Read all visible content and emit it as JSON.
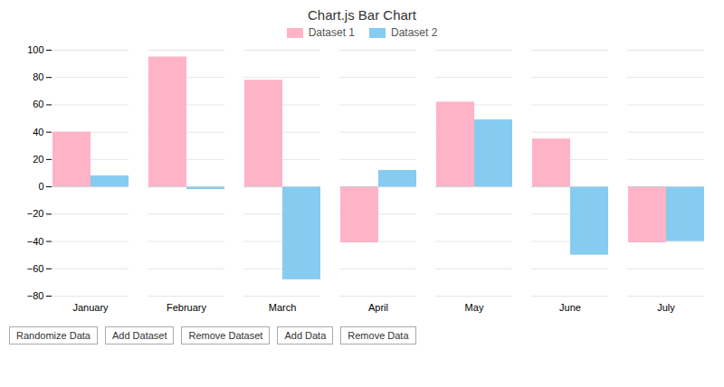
{
  "chart_data": {
    "type": "bar",
    "title": "Chart.js Bar Chart",
    "categories": [
      "January",
      "February",
      "March",
      "April",
      "May",
      "June",
      "July"
    ],
    "series": [
      {
        "name": "Dataset 1",
        "color": "#FFB3C6",
        "values": [
          40,
          95,
          78,
          -41,
          62,
          35,
          -41
        ]
      },
      {
        "name": "Dataset 2",
        "color": "#86CBF0",
        "values": [
          8,
          -2,
          -68,
          12,
          49,
          -50,
          -40
        ]
      }
    ],
    "ylim": [
      -80,
      100
    ],
    "yticks": [
      -80,
      -60,
      -40,
      -20,
      0,
      20,
      40,
      60,
      80,
      100
    ],
    "grid": true,
    "legend": "top",
    "annotations": [
      "Randomize Data",
      "Add Dataset",
      "Remove Dataset",
      "Add Data",
      "Remove Data"
    ]
  }
}
